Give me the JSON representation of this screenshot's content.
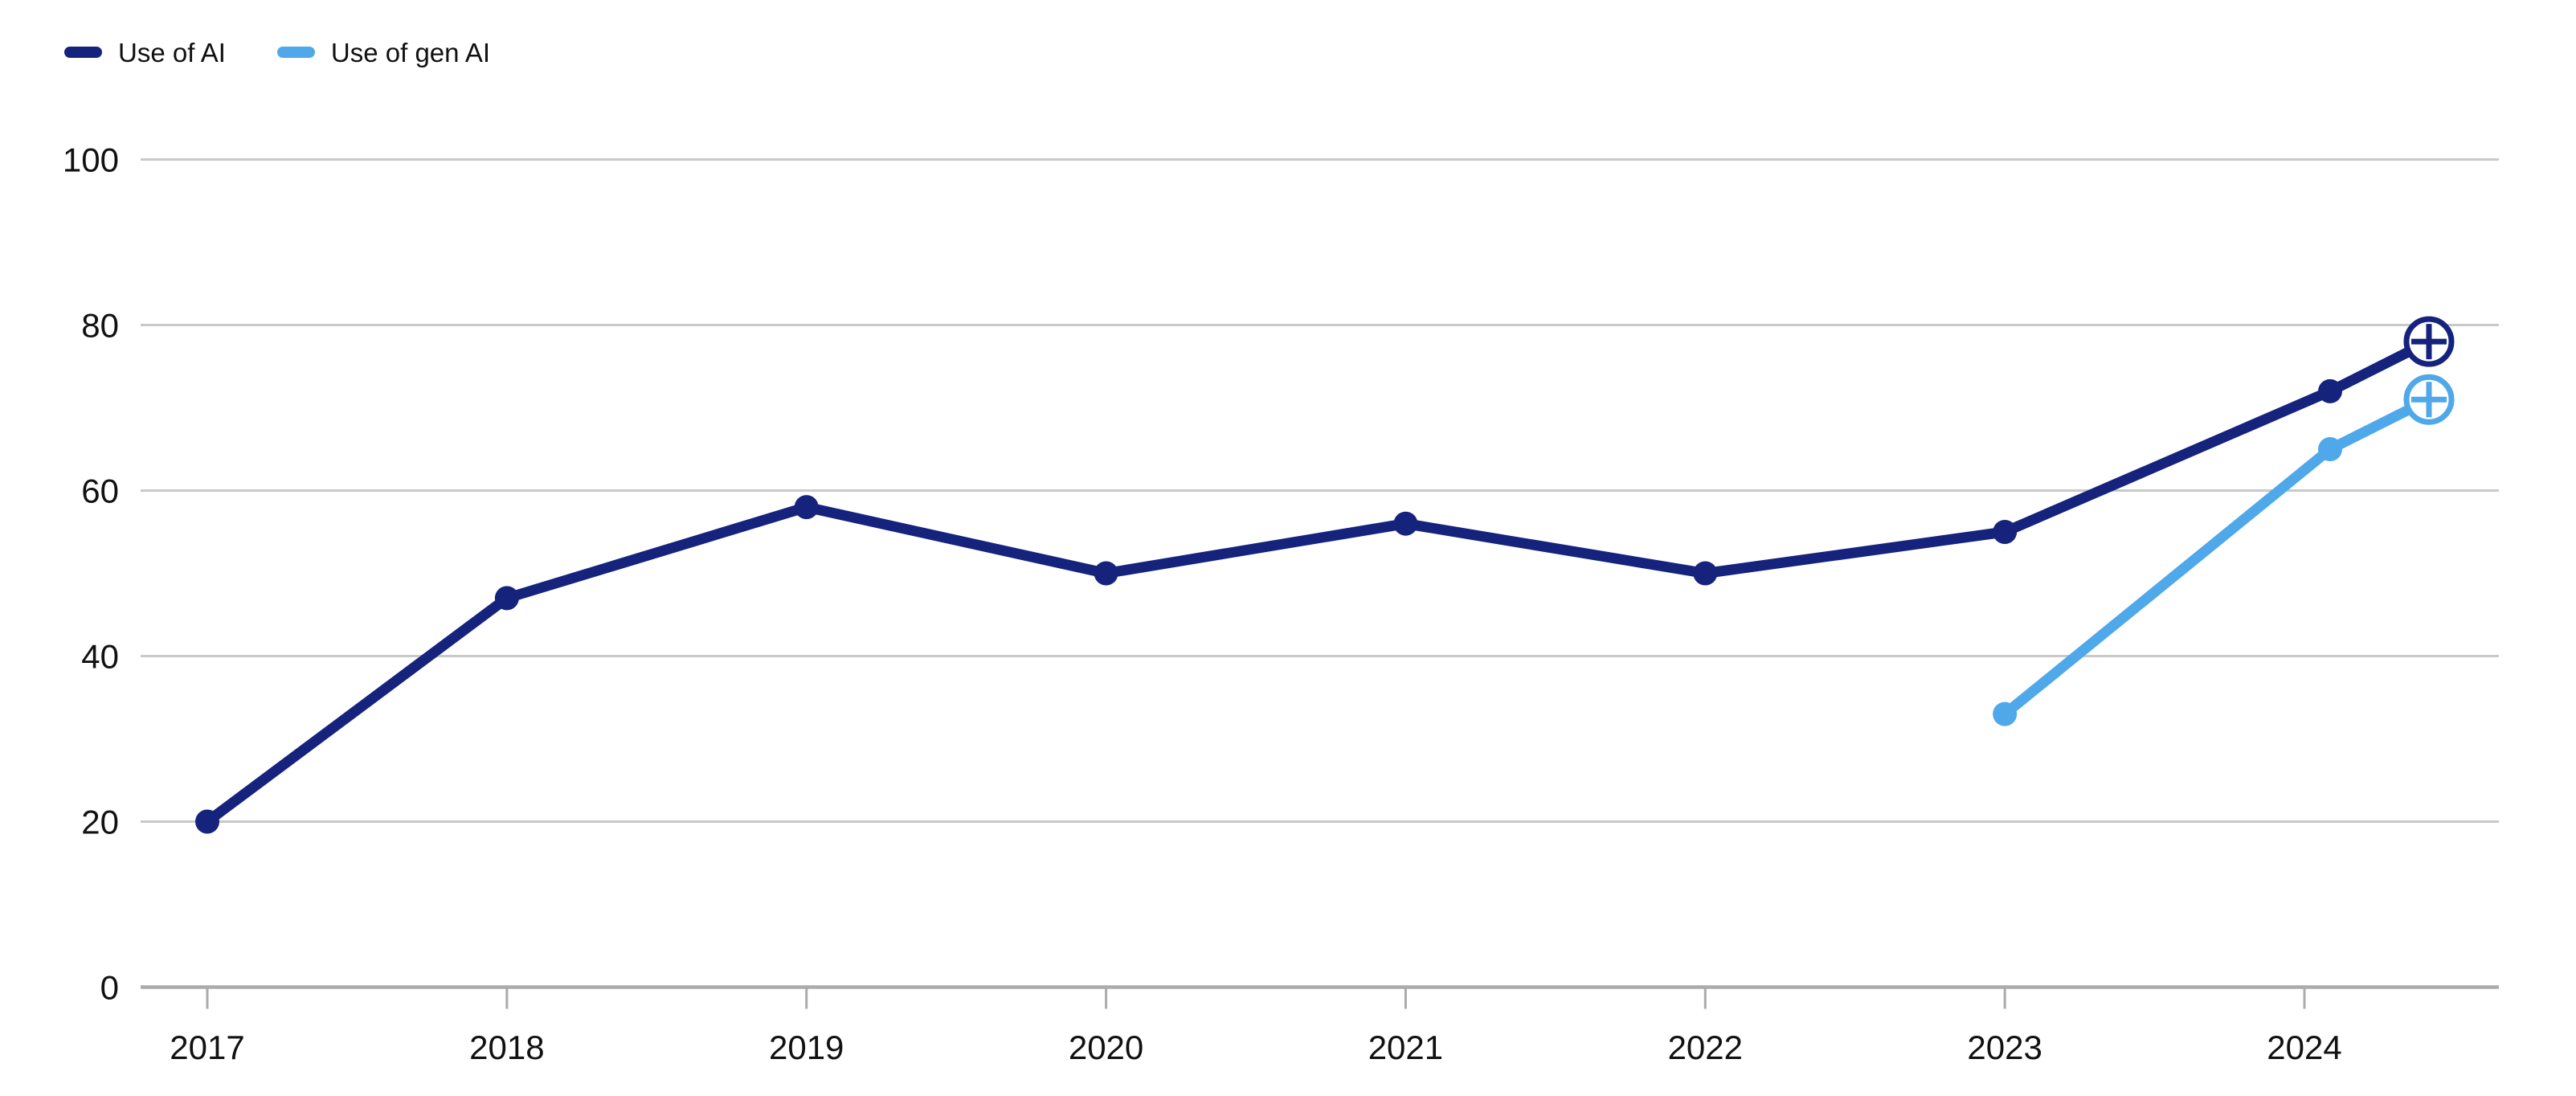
{
  "chart_data": {
    "type": "line",
    "title": "",
    "xlabel": "",
    "ylabel": "",
    "categories": [
      "2017",
      "2018",
      "2019",
      "2020",
      "2021",
      "2022",
      "2023",
      "2024"
    ],
    "series": [
      {
        "name": "Use of AI",
        "color": "#15237d",
        "start_index": 0,
        "values": [
          20,
          47,
          58,
          50,
          56,
          50,
          55,
          72
        ],
        "end_marker": {
          "value": 78,
          "shape": "circle-plus"
        }
      },
      {
        "name": "Use of gen AI",
        "color": "#4fa8e9",
        "start_index": 6,
        "values": [
          33,
          65
        ],
        "end_marker": {
          "value": 71,
          "shape": "circle-plus"
        }
      }
    ],
    "ylim": [
      0,
      100
    ],
    "yticks": [
      0,
      20,
      40,
      60,
      80,
      100
    ],
    "grid": "horizontal-gridlines",
    "legend_position": "top-left",
    "grid_color": "#c9c9c9",
    "axis_color": "#ababab",
    "text_color": "#111111",
    "marker_fill": "#ffffff"
  }
}
